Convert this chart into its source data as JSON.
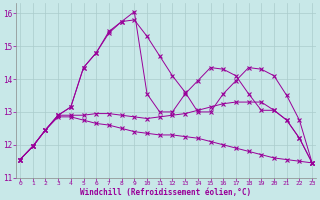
{
  "xlabel": "Windchill (Refroidissement éolien,°C)",
  "x_ticks": [
    0,
    1,
    2,
    3,
    4,
    5,
    6,
    7,
    8,
    9,
    10,
    11,
    12,
    13,
    14,
    15,
    16,
    17,
    18,
    19,
    20,
    21,
    22,
    23
  ],
  "ylim": [
    11,
    16.3
  ],
  "xlim": [
    -0.3,
    23.3
  ],
  "yticks": [
    11,
    12,
    13,
    14,
    15,
    16
  ],
  "bg_color": "#c8e8e8",
  "line_color": "#990099",
  "grid_color": "#aacccc",
  "line1_x": [
    0,
    1,
    2,
    3,
    4,
    5,
    6,
    7,
    8,
    9,
    10,
    11,
    12,
    13,
    14,
    15,
    16,
    17,
    18,
    19,
    20,
    21,
    22,
    23
  ],
  "line1_y": [
    11.55,
    11.95,
    12.45,
    12.9,
    13.15,
    14.35,
    14.8,
    15.45,
    15.75,
    16.05,
    13.55,
    13.0,
    13.0,
    13.55,
    13.95,
    14.35,
    14.3,
    14.1,
    13.55,
    13.05,
    13.05,
    12.75,
    12.2,
    11.45
  ],
  "line2_x": [
    0,
    1,
    2,
    3,
    4,
    5,
    6,
    7,
    8,
    9,
    10,
    11,
    12,
    13,
    14,
    15,
    16,
    17,
    18,
    19,
    20,
    21,
    22,
    23
  ],
  "line2_y": [
    11.55,
    11.95,
    12.45,
    12.9,
    13.15,
    14.35,
    14.8,
    15.4,
    15.75,
    15.8,
    15.3,
    14.7,
    14.1,
    13.6,
    13.0,
    13.0,
    13.55,
    13.95,
    14.35,
    14.3,
    14.1,
    13.5,
    12.75,
    11.45
  ],
  "line3_x": [
    0,
    1,
    2,
    3,
    4,
    5,
    6,
    7,
    8,
    9,
    10,
    11,
    12,
    13,
    14,
    15,
    16,
    17,
    18,
    19,
    20,
    21,
    22,
    23
  ],
  "line3_y": [
    11.55,
    11.95,
    12.45,
    12.9,
    12.9,
    12.9,
    12.95,
    12.95,
    12.9,
    12.85,
    12.8,
    12.85,
    12.9,
    12.95,
    13.05,
    13.15,
    13.25,
    13.3,
    13.3,
    13.3,
    13.05,
    12.75,
    12.2,
    11.45
  ],
  "line4_x": [
    0,
    1,
    2,
    3,
    4,
    5,
    6,
    7,
    8,
    9,
    10,
    11,
    12,
    13,
    14,
    15,
    16,
    17,
    18,
    19,
    20,
    21,
    22,
    23
  ],
  "line4_y": [
    11.55,
    11.95,
    12.45,
    12.85,
    12.85,
    12.75,
    12.65,
    12.6,
    12.5,
    12.4,
    12.35,
    12.3,
    12.3,
    12.25,
    12.2,
    12.1,
    12.0,
    11.9,
    11.8,
    11.7,
    11.6,
    11.55,
    11.5,
    11.45
  ]
}
